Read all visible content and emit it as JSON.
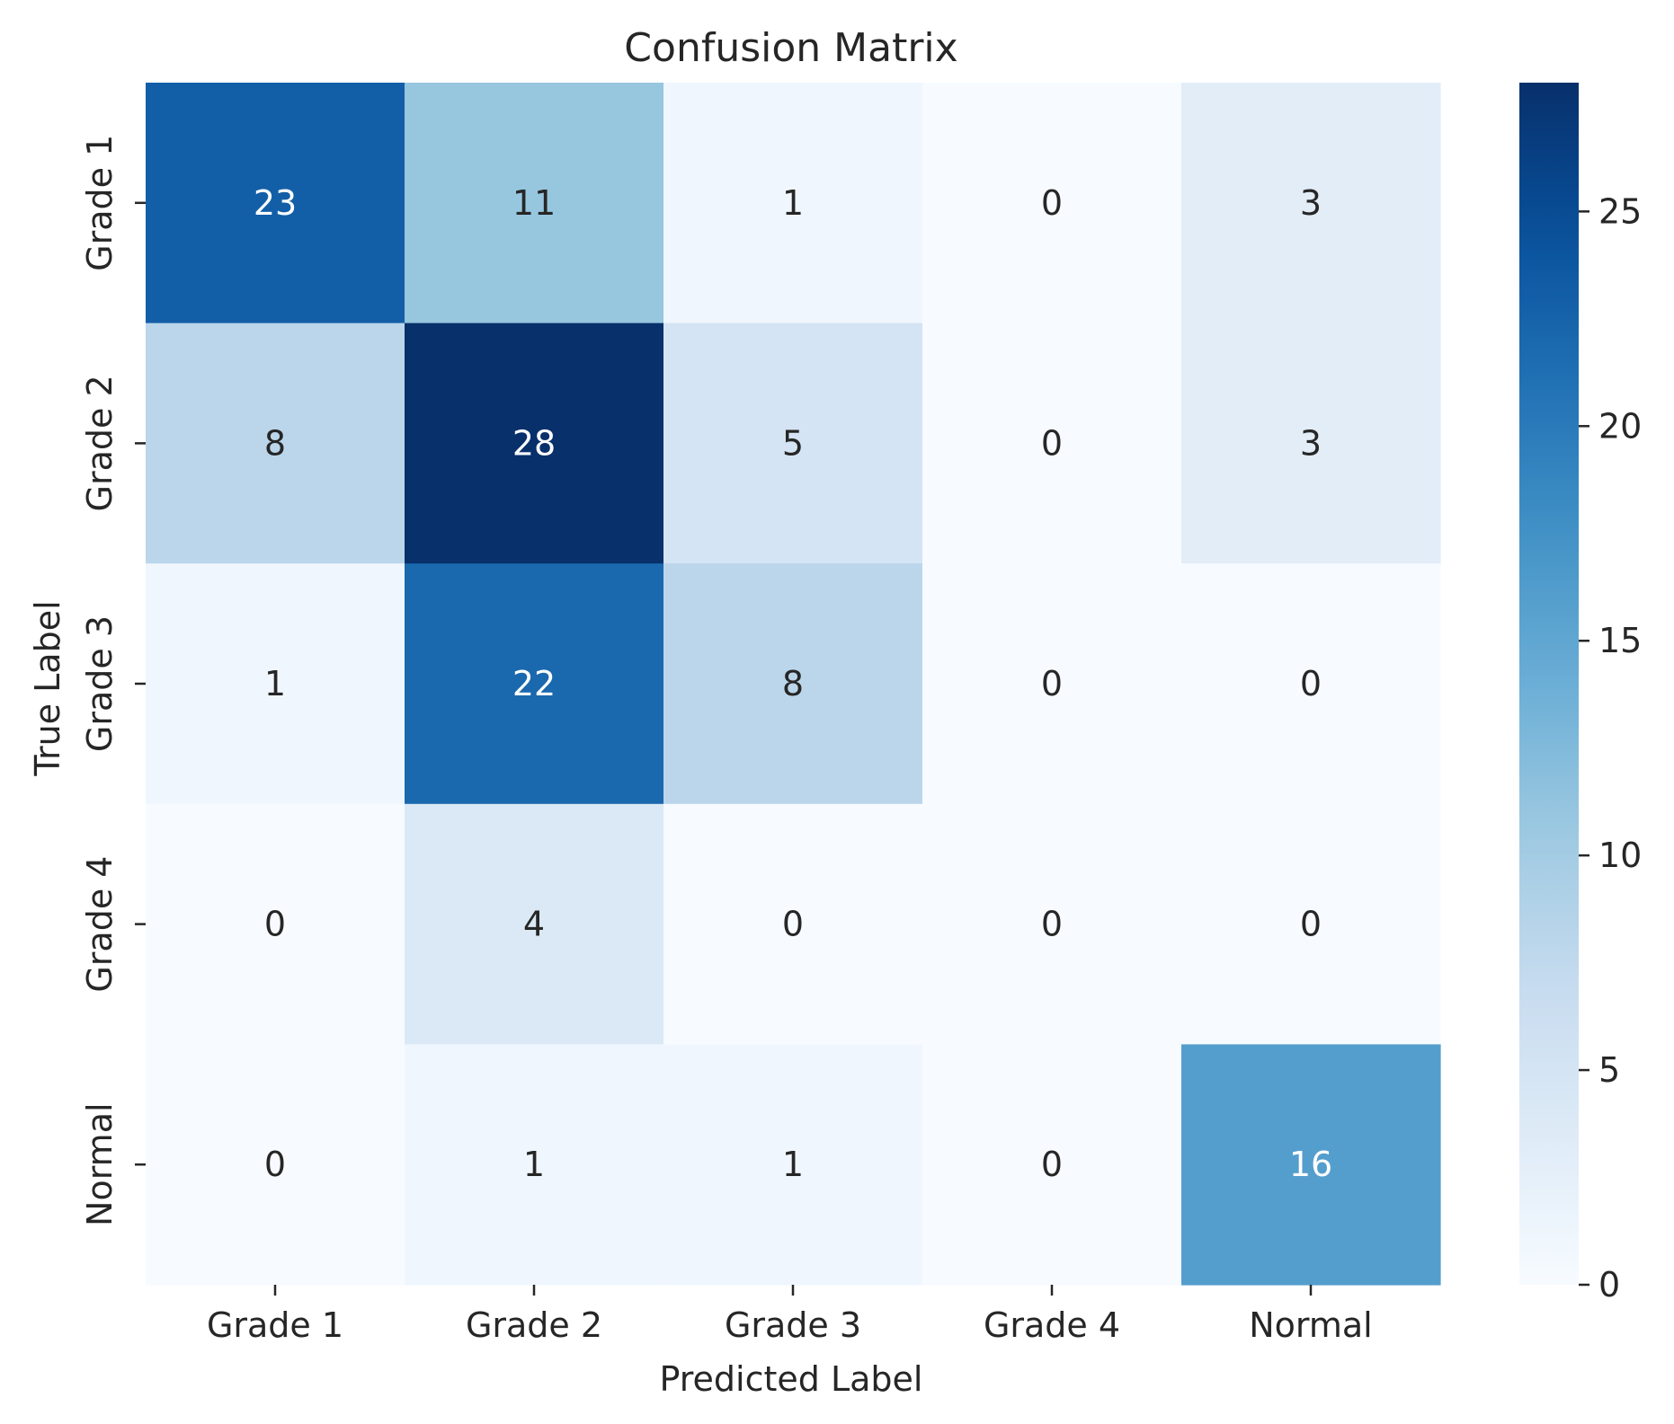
{
  "chart_data": {
    "type": "heatmap",
    "title": "Confusion Matrix",
    "xlabel": "Predicted Label",
    "ylabel": "True Label",
    "x_categories": [
      "Grade 1",
      "Grade 2",
      "Grade 3",
      "Grade 4",
      "Normal"
    ],
    "y_categories": [
      "Grade 1",
      "Grade 2",
      "Grade 3",
      "Grade 4",
      "Normal"
    ],
    "values": [
      [
        23,
        11,
        1,
        0,
        3
      ],
      [
        8,
        28,
        5,
        0,
        3
      ],
      [
        1,
        22,
        8,
        0,
        0
      ],
      [
        0,
        4,
        0,
        0,
        0
      ],
      [
        0,
        1,
        1,
        0,
        16
      ]
    ],
    "colormap": "Blues",
    "color_range": [
      0,
      28
    ],
    "colorbar_ticks": [
      0,
      5,
      10,
      15,
      20,
      25
    ],
    "colors": {
      "low": "#f7fbff",
      "high": "#08306b",
      "text_dark": "#262626",
      "text_light": "#ffffff"
    }
  }
}
